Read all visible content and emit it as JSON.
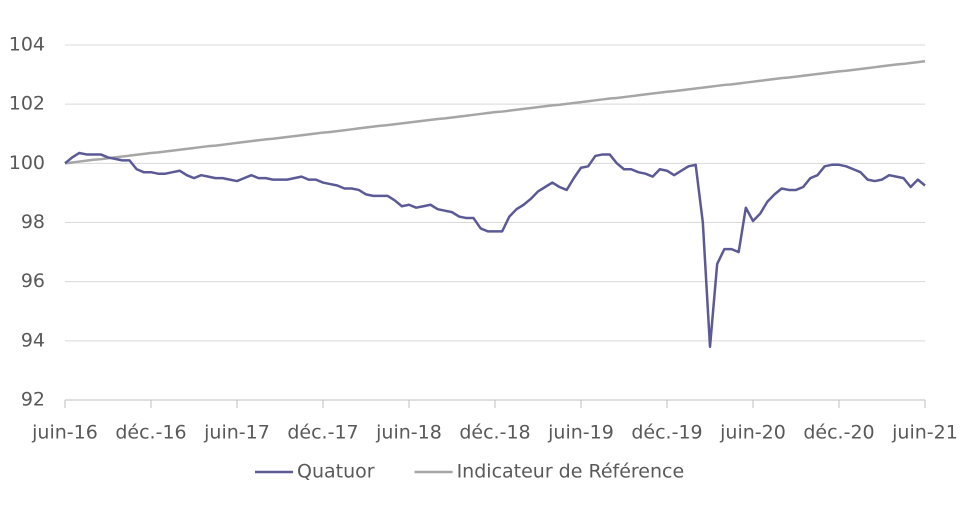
{
  "chart_data": {
    "type": "line",
    "categories": [
      "juin-16",
      null,
      null,
      null,
      null,
      null,
      null,
      null,
      null,
      null,
      null,
      null,
      "déc.-16",
      null,
      null,
      null,
      null,
      null,
      null,
      null,
      null,
      null,
      null,
      null,
      "juin-17",
      null,
      null,
      null,
      null,
      null,
      null,
      null,
      null,
      null,
      null,
      null,
      "déc.-17",
      null,
      null,
      null,
      null,
      null,
      null,
      null,
      null,
      null,
      null,
      null,
      "juin-18",
      null,
      null,
      null,
      null,
      null,
      null,
      null,
      null,
      null,
      null,
      null,
      "déc.-18",
      null,
      null,
      null,
      null,
      null,
      null,
      null,
      null,
      null,
      null,
      null,
      "juin-19",
      null,
      null,
      null,
      null,
      null,
      null,
      null,
      null,
      null,
      null,
      null,
      "déc.-19",
      null,
      null,
      null,
      null,
      null,
      null,
      null,
      null,
      null,
      null,
      null,
      "juin-20",
      null,
      null,
      null,
      null,
      null,
      null,
      null,
      null,
      null,
      null,
      null,
      "déc.-20",
      null,
      null,
      null,
      null,
      null,
      null,
      null,
      null,
      null,
      null,
      null,
      "juin-21"
    ],
    "series": [
      {
        "name": "Quatuor",
        "color": "#5b5a96",
        "values": [
          100.0,
          100.2,
          100.35,
          100.3,
          100.3,
          100.3,
          100.2,
          100.15,
          100.1,
          100.1,
          99.8,
          99.7,
          99.7,
          99.65,
          99.65,
          99.7,
          99.75,
          99.6,
          99.5,
          99.6,
          99.55,
          99.5,
          99.5,
          99.45,
          99.4,
          99.5,
          99.6,
          99.5,
          99.5,
          99.45,
          99.45,
          99.45,
          99.5,
          99.55,
          99.45,
          99.45,
          99.35,
          99.3,
          99.25,
          99.15,
          99.15,
          99.1,
          98.95,
          98.9,
          98.9,
          98.9,
          98.75,
          98.55,
          98.6,
          98.5,
          98.55,
          98.6,
          98.45,
          98.4,
          98.35,
          98.2,
          98.15,
          98.15,
          97.8,
          97.7,
          97.7,
          97.7,
          98.2,
          98.45,
          98.6,
          98.8,
          99.05,
          99.2,
          99.35,
          99.2,
          99.1,
          99.5,
          99.85,
          99.9,
          100.25,
          100.3,
          100.3,
          100.0,
          99.8,
          99.8,
          99.7,
          99.65,
          99.55,
          99.8,
          99.75,
          99.6,
          99.75,
          99.9,
          99.95,
          98.0,
          93.8,
          96.6,
          97.1,
          97.1,
          97.0,
          98.5,
          98.05,
          98.3,
          98.7,
          98.95,
          99.15,
          99.1,
          99.1,
          99.2,
          99.5,
          99.6,
          99.9,
          99.95,
          99.95,
          99.9,
          99.8,
          99.7,
          99.45,
          99.4,
          99.45,
          99.6,
          99.55,
          99.5,
          99.2,
          99.45,
          99.25
        ]
      },
      {
        "name": "Indicateur de Référence",
        "color": "#a6a6a6",
        "values": [
          100.0,
          100.03,
          100.06,
          100.09,
          100.12,
          100.14,
          100.17,
          100.2,
          100.23,
          100.26,
          100.29,
          100.32,
          100.35,
          100.37,
          100.4,
          100.43,
          100.46,
          100.49,
          100.52,
          100.55,
          100.58,
          100.6,
          100.63,
          100.66,
          100.69,
          100.72,
          100.75,
          100.78,
          100.81,
          100.83,
          100.86,
          100.89,
          100.92,
          100.95,
          100.98,
          101.01,
          101.04,
          101.06,
          101.09,
          101.12,
          101.15,
          101.18,
          101.21,
          101.24,
          101.27,
          101.29,
          101.32,
          101.35,
          101.38,
          101.41,
          101.44,
          101.47,
          101.5,
          101.52,
          101.55,
          101.58,
          101.61,
          101.64,
          101.67,
          101.7,
          101.73,
          101.75,
          101.78,
          101.81,
          101.84,
          101.87,
          101.9,
          101.93,
          101.96,
          101.98,
          102.01,
          102.04,
          102.07,
          102.1,
          102.13,
          102.16,
          102.19,
          102.21,
          102.24,
          102.27,
          102.3,
          102.33,
          102.36,
          102.39,
          102.42,
          102.44,
          102.47,
          102.5,
          102.53,
          102.56,
          102.59,
          102.62,
          102.65,
          102.67,
          102.7,
          102.73,
          102.76,
          102.79,
          102.82,
          102.85,
          102.88,
          102.9,
          102.93,
          102.96,
          102.99,
          103.02,
          103.05,
          103.08,
          103.11,
          103.13,
          103.16,
          103.19,
          103.22,
          103.25,
          103.28,
          103.31,
          103.34,
          103.36,
          103.39,
          103.42,
          103.45
        ]
      }
    ],
    "ylim": [
      92,
      104
    ],
    "yticks": [
      92,
      94,
      96,
      98,
      100,
      102,
      104
    ],
    "grid": true,
    "legend": "bottom"
  }
}
